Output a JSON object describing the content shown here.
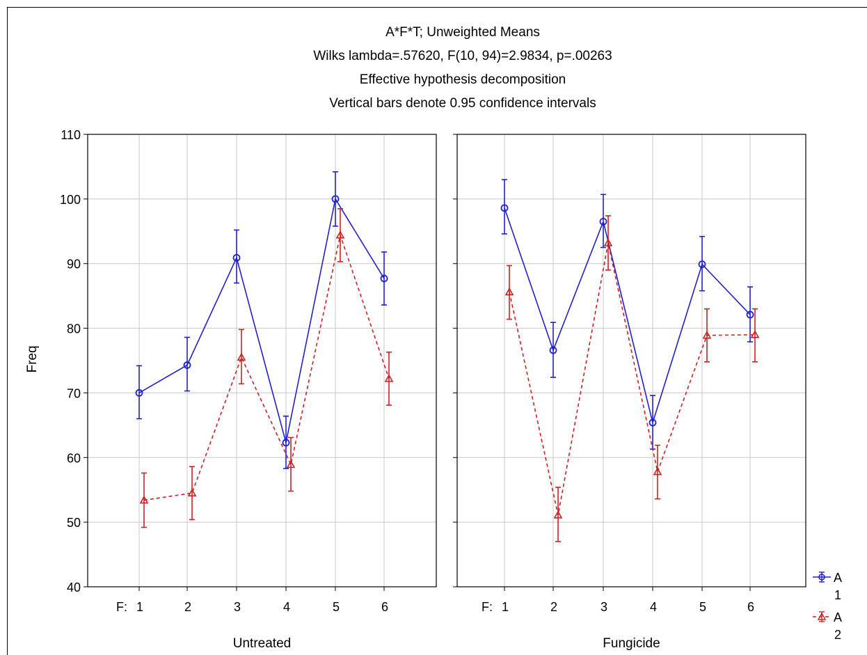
{
  "chart_data": {
    "type": "line",
    "title_lines": [
      "A*F*T; Unweighted Means",
      "Wilks lambda=.57620, F(10, 94)=2.9834, p=.00263",
      "Effective hypothesis decomposition",
      "Vertical bars denote 0.95 confidence intervals"
    ],
    "ylabel": "Freq",
    "ylim": [
      40,
      110
    ],
    "yticks": [
      40,
      50,
      60,
      70,
      80,
      90,
      100,
      110
    ],
    "x_factor_label": "F:",
    "categories": [
      "1",
      "2",
      "3",
      "4",
      "5",
      "6"
    ],
    "grid": true,
    "legend": {
      "title": "A",
      "placement": "right-bottom",
      "entries": [
        "1",
        "2"
      ]
    },
    "panels": [
      {
        "label": "Untreated",
        "series": [
          {
            "name": "1",
            "color": "#1f1fd1",
            "marker": "circle",
            "line": "solid",
            "values": [
              70,
              74.3,
              90.9,
              62.3,
              100,
              87.7
            ],
            "ci": [
              [
                66,
                74.2
              ],
              [
                70.3,
                78.6
              ],
              [
                87,
                95.2
              ],
              [
                58.3,
                66.4
              ],
              [
                95.8,
                104.2
              ],
              [
                83.6,
                91.8
              ]
            ]
          },
          {
            "name": "2",
            "color": "#d11f1f",
            "marker": "triangle",
            "line": "dashed",
            "values": [
              53.4,
              54.5,
              75.5,
              58.9,
              94.4,
              72.2
            ],
            "ci": [
              [
                49.2,
                57.6
              ],
              [
                50.4,
                58.6
              ],
              [
                71.4,
                79.8
              ],
              [
                54.8,
                63.1
              ],
              [
                90.3,
                98.5
              ],
              [
                68.1,
                76.3
              ]
            ]
          }
        ]
      },
      {
        "label": "Fungicide",
        "series": [
          {
            "name": "1",
            "color": "#1f1fd1",
            "marker": "circle",
            "line": "solid",
            "values": [
              98.6,
              76.6,
              96.5,
              65.4,
              89.9,
              82.1
            ],
            "ci": [
              [
                94.6,
                103
              ],
              [
                72.4,
                80.9
              ],
              [
                92.5,
                100.7
              ],
              [
                61.3,
                69.6
              ],
              [
                85.8,
                94.2
              ],
              [
                77.9,
                86.4
              ]
            ]
          },
          {
            "name": "2",
            "color": "#d11f1f",
            "marker": "triangle",
            "line": "dashed",
            "values": [
              85.6,
              51.1,
              93.2,
              57.8,
              78.9,
              79.0
            ],
            "ci": [
              [
                81.4,
                89.7
              ],
              [
                47,
                55.4
              ],
              [
                89,
                97.4
              ],
              [
                53.6,
                61.9
              ],
              [
                74.8,
                83
              ],
              [
                74.8,
                83
              ]
            ]
          }
        ]
      }
    ]
  }
}
